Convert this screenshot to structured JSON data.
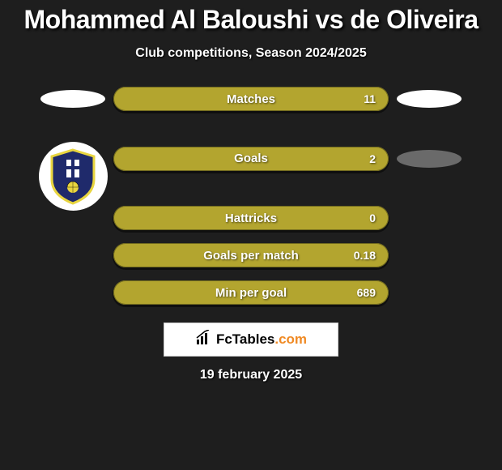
{
  "title": "Mohammed Al Baloushi vs de Oliveira",
  "subtitle": "Club competitions, Season 2024/2025",
  "brand": {
    "name": "FcTables",
    "suffix": ".com"
  },
  "date": "19 february 2025",
  "colors": {
    "pill_fill": "#b3a52f",
    "pill_stroke": "#716a1f",
    "background": "#1e1e1e",
    "chip_white": "#ffffff",
    "chip_grey": "#6a6a6a",
    "crest_blue": "#1f2a6b",
    "crest_yellow": "#e8d53f"
  },
  "stats": [
    {
      "label": "Matches",
      "value": "11"
    },
    {
      "label": "Goals",
      "value": "2"
    },
    {
      "label": "Hattricks",
      "value": "0"
    },
    {
      "label": "Goals per match",
      "value": "0.18"
    },
    {
      "label": "Min per goal",
      "value": "689"
    }
  ],
  "left_markers": [
    "white",
    "crest"
  ],
  "right_markers": [
    "white",
    "grey"
  ]
}
